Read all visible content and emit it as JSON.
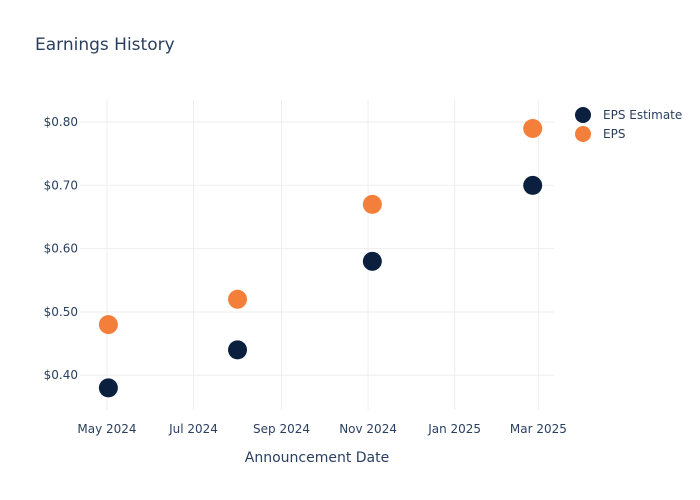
{
  "chart_data": {
    "type": "scatter",
    "title": "Earnings History",
    "xlabel": "Announcement Date",
    "ylabel": "",
    "x_tick_labels": [
      "May 2024",
      "Jul 2024",
      "Sep 2024",
      "Nov 2024",
      "Jan 2025",
      "Mar 2025"
    ],
    "x_ticks": [
      "2024-05-01",
      "2024-07-01",
      "2024-09-01",
      "2024-11-01",
      "2025-01-01",
      "2025-03-01"
    ],
    "xlim": [
      "2024-04-12",
      "2025-03-12"
    ],
    "y_tick_labels": [
      "$0.40",
      "$0.50",
      "$0.60",
      "$0.70",
      "$0.80"
    ],
    "y_ticks": [
      0.4,
      0.5,
      0.6,
      0.7,
      0.8
    ],
    "ylim": [
      0.345,
      0.835
    ],
    "grid": true,
    "legend_position": "top-right",
    "series": [
      {
        "name": "EPS Estimate",
        "color": "#0b1f3f",
        "points": [
          {
            "x": "2024-05-02",
            "y": 0.38
          },
          {
            "x": "2024-08-01",
            "y": 0.44
          },
          {
            "x": "2024-11-04",
            "y": 0.58
          },
          {
            "x": "2025-02-25",
            "y": 0.7
          }
        ]
      },
      {
        "name": "EPS",
        "color": "#f47f3a",
        "points": [
          {
            "x": "2024-05-02",
            "y": 0.48
          },
          {
            "x": "2024-08-01",
            "y": 0.52
          },
          {
            "x": "2024-11-04",
            "y": 0.67
          },
          {
            "x": "2025-02-25",
            "y": 0.79
          }
        ]
      }
    ]
  }
}
